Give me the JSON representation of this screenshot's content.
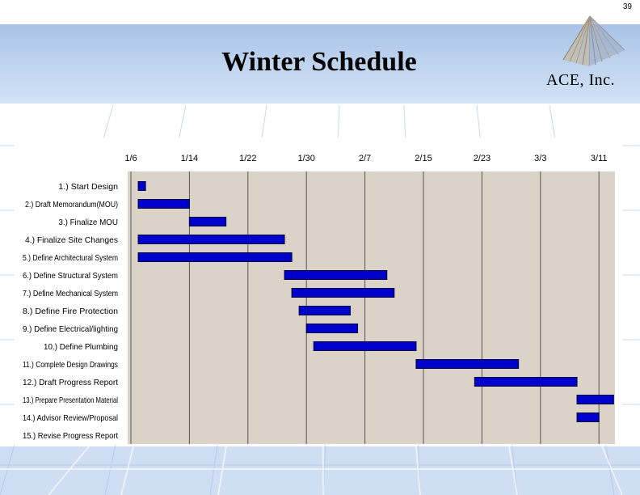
{
  "page_number": "39",
  "title": "Winter Schedule",
  "logo": {
    "text": "ACE, Inc.",
    "icon": "pyramid-logo-icon"
  },
  "colors": {
    "bar_fill": "#0000cc",
    "plot_background": "#dcd3c8",
    "header_band": "#bcd2ee"
  },
  "chart_data": {
    "type": "gantt",
    "title": "",
    "xlabel": "",
    "ylabel": "",
    "grid": true,
    "timeline_labels": [
      "1/6",
      "1/14",
      "1/22",
      "1/30",
      "2/7",
      "2/15",
      "2/23",
      "3/3",
      "3/11"
    ],
    "tasks": [
      {
        "name": "1.) Start Design",
        "start": "1/7",
        "end": "1/8"
      },
      {
        "name": "2.) Draft Memorandum(MOU)",
        "start": "1/7",
        "end": "1/14"
      },
      {
        "name": "3.) Finalize MOU",
        "start": "1/14",
        "end": "1/19"
      },
      {
        "name": "4.) Finalize Site Changes",
        "start": "1/7",
        "end": "1/27"
      },
      {
        "name": "5.) Define Architectural System",
        "start": "1/7",
        "end": "1/28"
      },
      {
        "name": "6.) Define Structural System",
        "start": "1/27",
        "end": "2/10"
      },
      {
        "name": "7.) Define Mechanical System",
        "start": "1/28",
        "end": "2/11"
      },
      {
        "name": "8.) Define Fire Protection",
        "start": "1/29",
        "end": "2/5"
      },
      {
        "name": "9.) Define Electrical/lighting",
        "start": "1/30",
        "end": "2/6"
      },
      {
        "name": "10.) Define Plumbing",
        "start": "1/31",
        "end": "2/14"
      },
      {
        "name": "11.) Complete Design Drawings",
        "start": "2/14",
        "end": "2/28"
      },
      {
        "name": "12.) Draft Progress Report",
        "start": "2/22",
        "end": "3/8"
      },
      {
        "name": "13.) Prepare Presentation Material",
        "start": "3/8",
        "end": "3/13"
      },
      {
        "name": "14.) Advisor Review/Proposal",
        "start": "3/8",
        "end": "3/11"
      },
      {
        "name": "15.) Revise Progress Report",
        "start": "",
        "end": ""
      }
    ]
  }
}
